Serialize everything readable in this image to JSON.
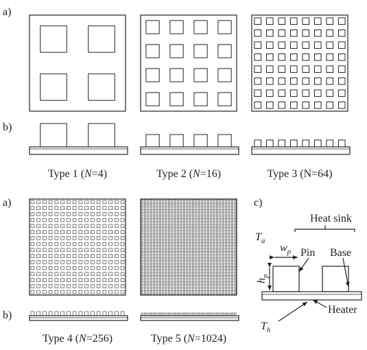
{
  "panels": {
    "a1": "a)",
    "b1": "b)",
    "a2": "a)",
    "b2": "b)",
    "c": "c)"
  },
  "types": [
    {
      "label": "Type 1 (",
      "var": "N",
      "rest": "=4)"
    },
    {
      "label": "Type 2 (",
      "var": "N",
      "rest": "=16)"
    },
    {
      "label": "Type 3 (N=64)"
    },
    {
      "label": "Type 4 (",
      "var": "N",
      "rest": "=256)"
    },
    {
      "label": "Type 5 (",
      "var": "N",
      "rest": "=1024)"
    }
  ],
  "schematic": {
    "heat_sink": "Heat sink",
    "ta": {
      "symbol": "T",
      "sub": "a"
    },
    "wp": {
      "symbol": "w",
      "sub": "p"
    },
    "pin": "Pin",
    "base": "Base",
    "hp": {
      "symbol": "h",
      "sub": "p"
    },
    "heater": "Heater",
    "th": {
      "symbol": "T",
      "sub": "h"
    }
  }
}
